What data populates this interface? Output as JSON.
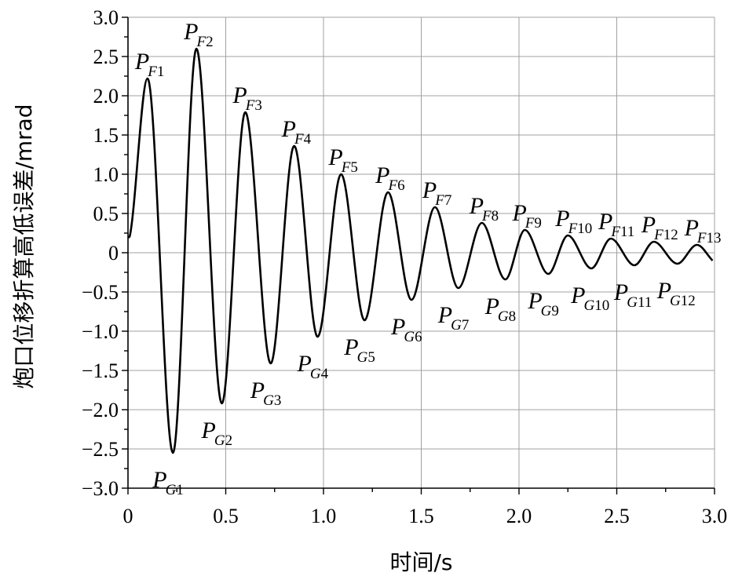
{
  "chart_data": {
    "type": "line",
    "title": "",
    "xlabel": "时间/s",
    "ylabel": "炮口位移折算高低误差/mrad",
    "xlim": [
      0,
      3.0
    ],
    "ylim": [
      -3.0,
      3.0
    ],
    "xticks": [
      0,
      0.5,
      1.0,
      1.5,
      2.0,
      2.5,
      3.0
    ],
    "yticks": [
      3.0,
      2.5,
      2.0,
      1.5,
      1.0,
      0.5,
      0,
      -0.5,
      -1.0,
      -1.5,
      -2.0,
      -2.5,
      -3.0
    ],
    "xtick_labels": [
      "0",
      "0.5",
      "1.0",
      "1.5",
      "2.0",
      "2.5",
      "3.0"
    ],
    "ytick_labels": [
      "3.0",
      "2.5",
      "2.0",
      "1.5",
      "1.0",
      "0.5",
      "0",
      "−0.5",
      "−1.0",
      "−1.5",
      "−2.0",
      "−2.5",
      "−3.0"
    ],
    "grid": true,
    "series": [
      {
        "x": [
          0.0,
          0.01,
          0.1,
          0.23,
          0.35,
          0.48,
          0.6,
          0.73,
          0.85,
          0.97,
          1.09,
          1.21,
          1.33,
          1.45,
          1.57,
          1.69,
          1.81,
          1.93,
          2.03,
          2.15,
          2.25,
          2.37,
          2.47,
          2.59,
          2.69,
          2.81,
          2.91,
          2.99
        ],
        "y": [
          0.2,
          0.22,
          2.22,
          -2.55,
          2.6,
          -1.92,
          1.79,
          -1.41,
          1.36,
          -1.07,
          1.0,
          -0.86,
          0.77,
          -0.6,
          0.58,
          -0.45,
          0.38,
          -0.34,
          0.29,
          -0.27,
          0.22,
          -0.2,
          0.18,
          -0.16,
          0.14,
          -0.14,
          0.1,
          -0.1
        ]
      }
    ],
    "annotations": [
      {
        "main": "P",
        "sub": "F",
        "num": "1",
        "x": 0.1,
        "y": 2.22,
        "kind": "peak"
      },
      {
        "main": "P",
        "sub": "F",
        "num": "2",
        "x": 0.35,
        "y": 2.6,
        "kind": "peak"
      },
      {
        "main": "P",
        "sub": "F",
        "num": "3",
        "x": 0.6,
        "y": 1.79,
        "kind": "peak"
      },
      {
        "main": "P",
        "sub": "F",
        "num": "4",
        "x": 0.85,
        "y": 1.36,
        "kind": "peak"
      },
      {
        "main": "P",
        "sub": "F",
        "num": "5",
        "x": 1.09,
        "y": 1.0,
        "kind": "peak"
      },
      {
        "main": "P",
        "sub": "F",
        "num": "6",
        "x": 1.33,
        "y": 0.77,
        "kind": "peak"
      },
      {
        "main": "P",
        "sub": "F",
        "num": "7",
        "x": 1.57,
        "y": 0.58,
        "kind": "peak"
      },
      {
        "main": "P",
        "sub": "F",
        "num": "8",
        "x": 1.81,
        "y": 0.38,
        "kind": "peak"
      },
      {
        "main": "P",
        "sub": "F",
        "num": "9",
        "x": 2.03,
        "y": 0.29,
        "kind": "peak"
      },
      {
        "main": "P",
        "sub": "F",
        "num": "10",
        "x": 2.25,
        "y": 0.22,
        "kind": "peak"
      },
      {
        "main": "P",
        "sub": "F",
        "num": "11",
        "x": 2.47,
        "y": 0.18,
        "kind": "peak"
      },
      {
        "main": "P",
        "sub": "F",
        "num": "12",
        "x": 2.69,
        "y": 0.14,
        "kind": "peak"
      },
      {
        "main": "P",
        "sub": "F",
        "num": "13",
        "x": 2.91,
        "y": 0.1,
        "kind": "peak"
      },
      {
        "main": "P",
        "sub": "G",
        "num": "1",
        "x": 0.23,
        "y": -2.55,
        "kind": "valley"
      },
      {
        "main": "P",
        "sub": "G",
        "num": "2",
        "x": 0.48,
        "y": -1.92,
        "kind": "valley"
      },
      {
        "main": "P",
        "sub": "G",
        "num": "3",
        "x": 0.73,
        "y": -1.41,
        "kind": "valley"
      },
      {
        "main": "P",
        "sub": "G",
        "num": "4",
        "x": 0.97,
        "y": -1.07,
        "kind": "valley"
      },
      {
        "main": "P",
        "sub": "G",
        "num": "5",
        "x": 1.21,
        "y": -0.86,
        "kind": "valley"
      },
      {
        "main": "P",
        "sub": "G",
        "num": "6",
        "x": 1.45,
        "y": -0.6,
        "kind": "valley"
      },
      {
        "main": "P",
        "sub": "G",
        "num": "7",
        "x": 1.69,
        "y": -0.45,
        "kind": "valley"
      },
      {
        "main": "P",
        "sub": "G",
        "num": "8",
        "x": 1.93,
        "y": -0.34,
        "kind": "valley"
      },
      {
        "main": "P",
        "sub": "G",
        "num": "9",
        "x": 2.15,
        "y": -0.27,
        "kind": "valley"
      },
      {
        "main": "P",
        "sub": "G",
        "num": "10",
        "x": 2.37,
        "y": -0.2,
        "kind": "valley"
      },
      {
        "main": "P",
        "sub": "G",
        "num": "11",
        "x": 2.59,
        "y": -0.16,
        "kind": "valley"
      },
      {
        "main": "P",
        "sub": "G",
        "num": "12",
        "x": 2.81,
        "y": -0.14,
        "kind": "valley"
      }
    ]
  }
}
